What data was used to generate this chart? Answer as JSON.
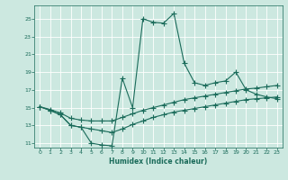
{
  "xlabel": "Humidex (Indice chaleur)",
  "bg_color": "#cce8e0",
  "line_color": "#1a6b5a",
  "xlim": [
    -0.5,
    23.5
  ],
  "ylim": [
    10.5,
    26.5
  ],
  "xticks": [
    0,
    1,
    2,
    3,
    4,
    5,
    6,
    7,
    8,
    9,
    10,
    11,
    12,
    13,
    14,
    15,
    16,
    17,
    18,
    19,
    20,
    21,
    22,
    23
  ],
  "yticks": [
    11,
    13,
    15,
    17,
    19,
    21,
    23,
    25
  ],
  "line1_x": [
    0,
    1,
    2,
    3,
    4,
    5,
    6,
    7,
    8,
    9,
    10,
    11,
    12,
    13,
    14,
    15,
    16,
    17,
    18,
    19,
    20,
    21,
    22,
    23
  ],
  "line1_y": [
    15.1,
    14.7,
    14.2,
    13.0,
    12.8,
    11.0,
    10.8,
    10.7,
    18.3,
    15.0,
    25.0,
    24.6,
    24.5,
    25.6,
    20.0,
    17.8,
    17.5,
    17.8,
    18.0,
    19.0,
    17.0,
    16.5,
    16.2,
    16.0
  ],
  "line2_x": [
    0,
    1,
    2,
    3,
    4,
    5,
    6,
    7,
    8,
    9,
    10,
    11,
    12,
    13,
    14,
    15,
    16,
    17,
    18,
    19,
    20,
    21,
    22,
    23
  ],
  "line2_y": [
    15.1,
    14.8,
    14.4,
    13.8,
    13.6,
    13.5,
    13.5,
    13.5,
    13.9,
    14.3,
    14.7,
    15.0,
    15.3,
    15.6,
    15.9,
    16.1,
    16.3,
    16.5,
    16.7,
    16.9,
    17.1,
    17.2,
    17.35,
    17.5
  ],
  "line3_x": [
    0,
    1,
    2,
    3,
    4,
    5,
    6,
    7,
    8,
    9,
    10,
    11,
    12,
    13,
    14,
    15,
    16,
    17,
    18,
    19,
    20,
    21,
    22,
    23
  ],
  "line3_y": [
    15.1,
    14.7,
    14.2,
    13.0,
    12.8,
    12.6,
    12.4,
    12.2,
    12.6,
    13.1,
    13.5,
    13.9,
    14.2,
    14.5,
    14.7,
    14.9,
    15.1,
    15.3,
    15.5,
    15.7,
    15.9,
    16.0,
    16.1,
    16.2
  ]
}
